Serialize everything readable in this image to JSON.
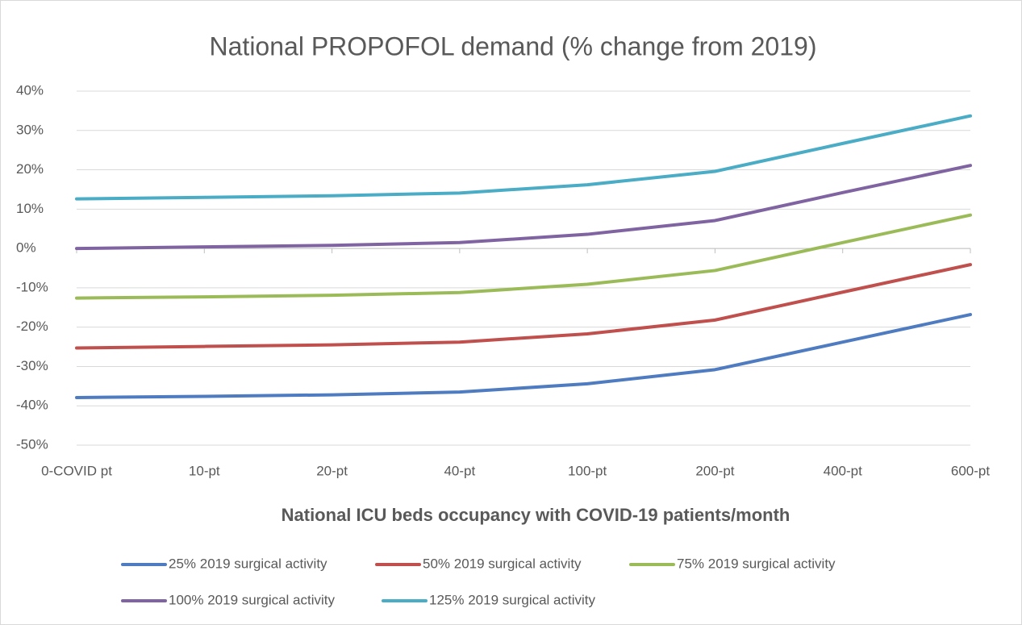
{
  "chart_data": {
    "type": "line",
    "title": "National PROPOFOL demand (% change from 2019)",
    "x_label": "National ICU beds occupancy with COVID-19 patients/month",
    "categories": [
      "0-COVID pt",
      "10-pt",
      "20-pt",
      "40-pt",
      "100-pt",
      "200-pt",
      "400-pt",
      "600-pt"
    ],
    "series": [
      {
        "name": "25% 2019 surgical activity",
        "color": "#4f7cc0",
        "values": [
          -37.9,
          -37.6,
          -37.2,
          -36.5,
          -34.4,
          -30.8,
          -23.8,
          -16.8
        ]
      },
      {
        "name": "50% 2019 surgical activity",
        "color": "#c0504d",
        "values": [
          -25.3,
          -24.9,
          -24.5,
          -23.8,
          -21.7,
          -18.2,
          -11.1,
          -4.1
        ]
      },
      {
        "name": "75% 2019 surgical activity",
        "color": "#9bbb59",
        "values": [
          -12.6,
          -12.3,
          -11.9,
          -11.2,
          -9.1,
          -5.6,
          1.5,
          8.5
        ]
      },
      {
        "name": "100% 2019 surgical activity",
        "color": "#8064a2",
        "values": [
          0,
          0.4,
          0.8,
          1.5,
          3.6,
          7.1,
          14.2,
          21.1
        ]
      },
      {
        "name": "125% 2019 surgical activity",
        "color": "#4bacc6",
        "values": [
          12.6,
          13.0,
          13.4,
          14.1,
          16.2,
          19.6,
          26.7,
          33.7
        ]
      }
    ],
    "ylim": [
      -50,
      40
    ],
    "yticks": [
      {
        "value": -50,
        "label": "-50%"
      },
      {
        "value": -40,
        "label": "-40%"
      },
      {
        "value": -30,
        "label": "-30%"
      },
      {
        "value": -20,
        "label": "-20%"
      },
      {
        "value": -10,
        "label": "-10%"
      },
      {
        "value": 0,
        "label": "0%"
      },
      {
        "value": 10,
        "label": "10%"
      },
      {
        "value": 20,
        "label": "20%"
      },
      {
        "value": 30,
        "label": "30%"
      },
      {
        "value": 40,
        "label": "40%"
      }
    ],
    "grid": true,
    "legend": "bottom"
  }
}
